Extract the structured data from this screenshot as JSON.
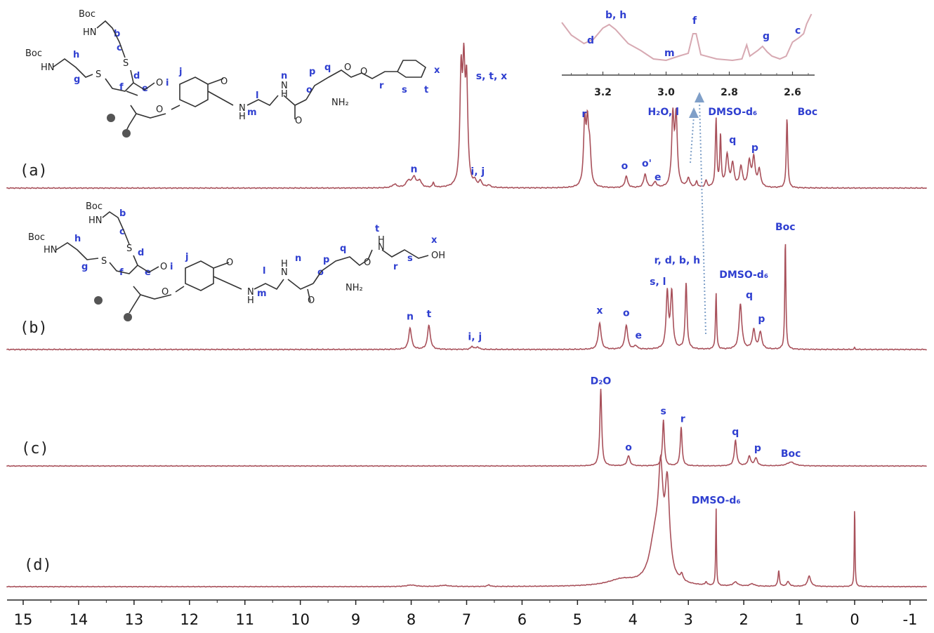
{
  "chart_data": {
    "type": "line",
    "title": "",
    "xlabel": "",
    "ylabel": "",
    "xlim": [
      15.3,
      -1.3
    ],
    "x_reversed": true,
    "x_ticks": [
      "15",
      "14",
      "13",
      "12",
      "11",
      "10",
      "9",
      "8",
      "7",
      "6",
      "5",
      "4",
      "3",
      "2",
      "1",
      "0",
      "-1"
    ],
    "grid": false,
    "color": "#a8505a",
    "panels": [
      {
        "label": "(a)",
        "peaks": [
          {
            "x": 8.3,
            "h": 0.03,
            "w": 0.05
          },
          {
            "x": 8.05,
            "h": 0.06,
            "w": 0.05
          },
          {
            "x": 7.95,
            "h": 0.09,
            "w": 0.04
          },
          {
            "x": 7.85,
            "h": 0.06,
            "w": 0.04
          },
          {
            "x": 7.6,
            "h": 0.04,
            "w": 0.02
          },
          {
            "x": 7.1,
            "h": 0.95,
            "w": 0.025
          },
          {
            "x": 7.05,
            "h": 0.93,
            "w": 0.025
          },
          {
            "x": 7.0,
            "h": 0.85,
            "w": 0.025
          },
          {
            "x": 6.85,
            "h": 0.04,
            "w": 0.03
          },
          {
            "x": 6.75,
            "h": 0.05,
            "w": 0.03
          },
          {
            "x": 6.6,
            "h": 0.02,
            "w": 0.03
          },
          {
            "x": 4.87,
            "h": 0.55,
            "w": 0.025
          },
          {
            "x": 4.82,
            "h": 0.5,
            "w": 0.025
          },
          {
            "x": 4.78,
            "h": 0.3,
            "w": 0.025
          },
          {
            "x": 4.12,
            "h": 0.1,
            "w": 0.03
          },
          {
            "x": 3.78,
            "h": 0.12,
            "w": 0.03
          },
          {
            "x": 3.6,
            "h": 0.05,
            "w": 0.03
          },
          {
            "x": 3.28,
            "h": 0.62,
            "w": 0.025
          },
          {
            "x": 3.22,
            "h": 0.62,
            "w": 0.025
          },
          {
            "x": 3.0,
            "h": 0.08,
            "w": 0.03
          },
          {
            "x": 2.85,
            "h": 0.05,
            "w": 0.02
          },
          {
            "x": 2.68,
            "h": 0.06,
            "w": 0.02
          },
          {
            "x": 2.5,
            "h": 0.6,
            "w": 0.015
          },
          {
            "x": 2.42,
            "h": 0.45,
            "w": 0.015
          },
          {
            "x": 2.3,
            "h": 0.28,
            "w": 0.03
          },
          {
            "x": 2.2,
            "h": 0.2,
            "w": 0.03
          },
          {
            "x": 2.05,
            "h": 0.18,
            "w": 0.03
          },
          {
            "x": 1.9,
            "h": 0.22,
            "w": 0.03
          },
          {
            "x": 1.82,
            "h": 0.25,
            "w": 0.03
          },
          {
            "x": 1.72,
            "h": 0.15,
            "w": 0.03
          },
          {
            "x": 1.22,
            "h": 0.62,
            "w": 0.015
          }
        ],
        "annotations": [
          {
            "text": "n",
            "x": 7.95,
            "h": 0.14
          },
          {
            "text": "s, t, x",
            "x": 6.55,
            "h": 0.97
          },
          {
            "text": "i, j",
            "x": 6.8,
            "h": 0.12
          },
          {
            "text": "r",
            "x": 4.88,
            "h": 0.63
          },
          {
            "text": "o",
            "x": 4.15,
            "h": 0.17
          },
          {
            "text": "o'",
            "x": 3.75,
            "h": 0.19
          },
          {
            "text": "e",
            "x": 3.55,
            "h": 0.07
          },
          {
            "text": "H₂O, l",
            "x": 3.45,
            "h": 0.65
          },
          {
            "text": "DMSO-d₆",
            "x": 2.2,
            "h": 0.65
          },
          {
            "text": "q",
            "x": 2.2,
            "h": 0.4
          },
          {
            "text": "p",
            "x": 1.8,
            "h": 0.33
          },
          {
            "text": "Boc",
            "x": 0.85,
            "h": 0.65
          }
        ]
      },
      {
        "label": "(b)",
        "peaks": [
          {
            "x": 8.02,
            "h": 0.18,
            "w": 0.03
          },
          {
            "x": 7.68,
            "h": 0.2,
            "w": 0.03
          },
          {
            "x": 6.9,
            "h": 0.025,
            "w": 0.03
          },
          {
            "x": 6.8,
            "h": 0.02,
            "w": 0.03
          },
          {
            "x": 4.6,
            "h": 0.22,
            "w": 0.03
          },
          {
            "x": 4.12,
            "h": 0.2,
            "w": 0.03
          },
          {
            "x": 3.95,
            "h": 0.03,
            "w": 0.03
          },
          {
            "x": 3.38,
            "h": 0.47,
            "w": 0.025
          },
          {
            "x": 3.3,
            "h": 0.47,
            "w": 0.025
          },
          {
            "x": 3.04,
            "h": 0.55,
            "w": 0.02
          },
          {
            "x": 2.5,
            "h": 0.47,
            "w": 0.012
          },
          {
            "x": 2.06,
            "h": 0.38,
            "w": 0.03
          },
          {
            "x": 1.82,
            "h": 0.16,
            "w": 0.03
          },
          {
            "x": 1.7,
            "h": 0.14,
            "w": 0.03
          },
          {
            "x": 1.25,
            "h": 0.92,
            "w": 0.012
          },
          {
            "x": 0.0,
            "h": 0.015,
            "w": 0.01
          }
        ],
        "annotations": [
          {
            "text": "n",
            "x": 8.02,
            "h": 0.25
          },
          {
            "text": "t",
            "x": 7.68,
            "h": 0.27
          },
          {
            "text": "i, j",
            "x": 6.85,
            "h": 0.08
          },
          {
            "text": "x",
            "x": 4.6,
            "h": 0.3
          },
          {
            "text": "o",
            "x": 4.12,
            "h": 0.28
          },
          {
            "text": "e",
            "x": 3.9,
            "h": 0.09
          },
          {
            "text": "s, l",
            "x": 3.55,
            "h": 0.54
          },
          {
            "text": "r, d, b, h",
            "x": 3.2,
            "h": 0.72
          },
          {
            "text": "DMSO-d₆",
            "x": 2.0,
            "h": 0.6
          },
          {
            "text": "q",
            "x": 1.9,
            "h": 0.43
          },
          {
            "text": "p",
            "x": 1.68,
            "h": 0.23
          },
          {
            "text": "Boc",
            "x": 1.25,
            "h": 1.0
          }
        ]
      },
      {
        "label": "(c)",
        "peaks": [
          {
            "x": 4.58,
            "h": 1.0,
            "w": 0.02
          },
          {
            "x": 4.08,
            "h": 0.13,
            "w": 0.03
          },
          {
            "x": 3.45,
            "h": 0.6,
            "w": 0.02
          },
          {
            "x": 3.13,
            "h": 0.5,
            "w": 0.02
          },
          {
            "x": 2.15,
            "h": 0.33,
            "w": 0.025
          },
          {
            "x": 1.9,
            "h": 0.12,
            "w": 0.03
          },
          {
            "x": 1.78,
            "h": 0.1,
            "w": 0.03
          },
          {
            "x": 1.15,
            "h": 0.05,
            "w": 0.08
          }
        ],
        "annotations": [
          {
            "text": "D₂O",
            "x": 4.58,
            "h": 1.06
          },
          {
            "text": "o",
            "x": 4.08,
            "h": 0.2
          },
          {
            "text": "s",
            "x": 3.45,
            "h": 0.67
          },
          {
            "text": "r",
            "x": 3.1,
            "h": 0.57
          },
          {
            "text": "q",
            "x": 2.15,
            "h": 0.4
          },
          {
            "text": "p",
            "x": 1.75,
            "h": 0.19
          },
          {
            "text": "Boc",
            "x": 1.15,
            "h": 0.12
          }
        ]
      },
      {
        "label": "(d)",
        "peaks": [
          {
            "x": 8.0,
            "h": 0.02,
            "w": 0.1
          },
          {
            "x": 7.4,
            "h": 0.015,
            "w": 0.1
          },
          {
            "x": 6.6,
            "h": 0.02,
            "w": 0.03
          },
          {
            "x": 4.2,
            "h": 0.08,
            "w": 0.3
          },
          {
            "x": 3.6,
            "h": 0.55,
            "w": 0.12
          },
          {
            "x": 3.5,
            "h": 1.15,
            "w": 0.05
          },
          {
            "x": 3.38,
            "h": 1.15,
            "w": 0.05
          },
          {
            "x": 3.12,
            "h": 0.08,
            "w": 0.03
          },
          {
            "x": 2.68,
            "h": 0.04,
            "w": 0.02
          },
          {
            "x": 2.5,
            "h": 1.0,
            "w": 0.008
          },
          {
            "x": 2.15,
            "h": 0.05,
            "w": 0.05
          },
          {
            "x": 1.85,
            "h": 0.03,
            "w": 0.05
          },
          {
            "x": 1.37,
            "h": 0.2,
            "w": 0.015
          },
          {
            "x": 1.2,
            "h": 0.06,
            "w": 0.03
          },
          {
            "x": 0.82,
            "h": 0.13,
            "w": 0.035
          },
          {
            "x": 0.0,
            "h": 1.05,
            "w": 0.008
          }
        ],
        "annotations": [
          {
            "text": "DMSO-d₆",
            "x": 2.5,
            "h": 1.06
          }
        ]
      }
    ],
    "inset": {
      "xlim": [
        3.33,
        2.53
      ],
      "x_ticks": [
        "3.2",
        "3.0",
        "2.8",
        "2.6"
      ],
      "labels": [
        "d",
        "b, h",
        "m",
        "f",
        "g",
        "c"
      ]
    }
  },
  "structure_a": {
    "atoms": [
      "Boc",
      "HN",
      "Boc",
      "HN",
      "S",
      "S",
      "O",
      "O",
      "O",
      "N",
      "H",
      "N",
      "H",
      "O",
      "NH₂",
      "O",
      "O"
    ],
    "letters": [
      "b",
      "c",
      "h",
      "g",
      "d",
      "f",
      "e",
      "i",
      "j",
      "l",
      "m",
      "n",
      "o",
      "p",
      "q",
      "r",
      "s",
      "t",
      "x"
    ]
  },
  "structure_b": {
    "atoms": [
      "Boc",
      "HN",
      "Boc",
      "HN",
      "S",
      "S",
      "O",
      "O",
      "O",
      "N",
      "H",
      "N",
      "H",
      "O",
      "NH₂",
      "O",
      "N",
      "H",
      "OH"
    ],
    "letters": [
      "b",
      "c",
      "h",
      "g",
      "d",
      "f",
      "e",
      "i",
      "j",
      "l",
      "m",
      "n",
      "o",
      "p",
      "q",
      "r",
      "s",
      "t",
      "x"
    ]
  }
}
